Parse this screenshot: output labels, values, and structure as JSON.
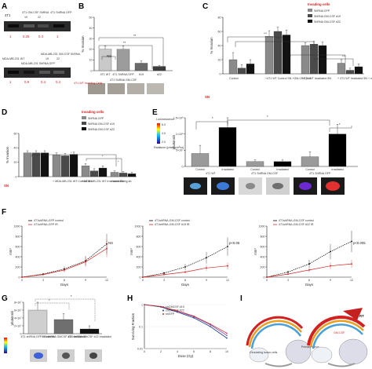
{
  "panels": [
    "A",
    "B",
    "C",
    "D",
    "E",
    "F",
    "G",
    "H",
    "I"
  ],
  "panel_a": {
    "top": {
      "cells": [
        "4T1",
        "4T1 GM-CSF ShRNA",
        "4T1 ShRNA GFP"
      ],
      "sub": [
        "19",
        "22"
      ],
      "values": [
        "1",
        "0.25",
        "0.4",
        "1"
      ]
    },
    "bottom": {
      "cells": [
        "MDA-MB-231 WT",
        "MDA-MB-231 ShRNA GFP",
        "MDA-MB-231 GM-CSF ShRNA"
      ],
      "sub": [
        "19",
        "22"
      ],
      "values": [
        "1",
        "0.9",
        "0.4",
        "0.4"
      ]
    }
  },
  "panel_b": {
    "chart_data": {
      "type": "bar",
      "categories": [
        "4T1 WT",
        "4T1 ShRNA GFP",
        "#19",
        "#22"
      ],
      "values": [
        20,
        20,
        7,
        4
      ],
      "errors": [
        3,
        3,
        2,
        1
      ],
      "ylabel": "% Invasion",
      "ylim": [
        0,
        50
      ],
      "yticks": [
        0,
        10,
        20,
        30,
        40,
        50
      ]
    },
    "group_label": "4T1 ShRNA GM-CSF",
    "sig": [
      "NS",
      "**",
      "**"
    ],
    "caption": "4T1 WT Invading Cells",
    "colors": [
      "#c9c9c9",
      "#9c9c9c",
      "#6a6a6a",
      "#3c3c3c"
    ]
  },
  "panel_c": {
    "legend_title": "Invading cells",
    "chart_data": {
      "type": "bar",
      "ylabel": "% Invasion",
      "ylim": [
        0,
        80
      ],
      "yticks": [
        0,
        20,
        40,
        60,
        80
      ],
      "categories": [
        "Control",
        "+4T1 WT Control SN +GM-CSF prot",
        "+ 4T1 WT Irradiated SN",
        "+ 4T1 WT Irradiated SN + neutralizing ab"
      ],
      "series": [
        {
          "name": "ShRNA GFP",
          "values": [
            20,
            53,
            40,
            15
          ],
          "errors": [
            10,
            8,
            4,
            5
          ],
          "color": "#8a8a8a"
        },
        {
          "name": "ShRNA GM-CSF #19",
          "values": [
            8,
            60,
            42,
            5
          ],
          "errors": [
            5,
            6,
            4,
            3
          ],
          "color": "#4a4a4a"
        },
        {
          "name": "ShRNA GM-CSF #22",
          "values": [
            14,
            55,
            40,
            10
          ],
          "errors": [
            6,
            7,
            5,
            4
          ],
          "color": "#111111"
        }
      ]
    },
    "sn_label": "SN",
    "sig": "***"
  },
  "panel_d": {
    "legend_title": "Invading cells",
    "chart_data": {
      "type": "bar",
      "ylabel": "% Invasion",
      "ylim": [
        0,
        60
      ],
      "yticks": [
        0,
        20,
        40,
        60
      ],
      "categories": [
        "",
        "+ MDA-MB-231 WT Control SN",
        "+ MDA-MB-231 WT Irradiated SN",
        "+ neutralizing ab"
      ],
      "series": [
        {
          "name": "ShRNA GFP",
          "values": [
            33,
            30,
            15,
            6
          ],
          "errors": [
            3,
            3,
            3,
            2
          ],
          "color": "#8a8a8a"
        },
        {
          "name": "ShRNA GM-CSF #19",
          "values": [
            33,
            29,
            8,
            5
          ],
          "errors": [
            3,
            3,
            3,
            2
          ],
          "color": "#4a4a4a"
        },
        {
          "name": "ShRNA GM-CSF #22",
          "values": [
            33,
            31,
            12,
            4
          ],
          "errors": [
            3,
            3,
            3,
            2
          ],
          "color": "#111111"
        }
      ]
    },
    "sn_label": "SN",
    "sig": "*"
  },
  "panel_e": {
    "legend_title": "Luminescence",
    "legend_sub": "Radiance (p/sec/cm²/sr)",
    "colorbar_ticks": [
      "6.0",
      "4.0",
      "2.0"
    ],
    "chart_data": {
      "type": "bar",
      "ylabel": "photons/s",
      "ylim": [
        0,
        15
      ],
      "yticks": [
        "0",
        "5×10⁷",
        "1×10⁸",
        "1.5×10⁸"
      ],
      "categories": [
        "Control",
        "Irradiated",
        "Control",
        "Irradiated",
        "Control",
        "Irradiated"
      ],
      "values": [
        4,
        12,
        1.5,
        1.5,
        3,
        10
      ],
      "errors": [
        2.5,
        3,
        0.5,
        0.5,
        1.5,
        3
      ],
      "colors": [
        "#9a9a9a",
        "#000000",
        "#9a9a9a",
        "#000000",
        "#9a9a9a",
        "#000000"
      ]
    },
    "group_labels": [
      "4T1 WT",
      "4T1 ShRNA GM-CSF",
      "4T1 ShRNA GFP"
    ],
    "sig": "*"
  },
  "panel_f": {
    "charts": [
      {
        "legend": [
          "4T1shRNA-GFP control",
          "4T1shRNA-GFP IR"
        ],
        "ylabel": "mm³",
        "xlabel": "Days",
        "sig": "NS",
        "chart_data": {
          "type": "line",
          "x": [
            0,
            3,
            6,
            9,
            12
          ],
          "ylim": [
            0,
            1000
          ],
          "yticks": [
            0,
            200,
            400,
            600,
            800,
            1000
          ],
          "series": [
            {
              "name": "4T1shRNA-GFP control",
              "values": [
                0,
                60,
                160,
                320,
                650
              ]
            },
            {
              "name": "4T1shRNA-GFP IR",
              "values": [
                0,
                50,
                140,
                300,
                560
              ]
            }
          ]
        }
      },
      {
        "legend": [
          "4T1shRNA-GM-CSF control",
          "4T1shRNA-GM-CSF #19 IR"
        ],
        "ylabel": "mm³",
        "xlabel": "Days",
        "sig": "p<0.05",
        "chart_data": {
          "type": "line",
          "x": [
            0,
            3,
            6,
            9,
            12
          ],
          "ylim": [
            0,
            1000
          ],
          "yticks": [
            0,
            200,
            400,
            600,
            800,
            1000
          ],
          "series": [
            {
              "name": "4T1shRNA-GM-CSF control",
              "values": [
                0,
                80,
                200,
                380,
                600
              ]
            },
            {
              "name": "4T1shRNA-GM-CSF #19 IR",
              "values": [
                0,
                50,
                100,
                180,
                220
              ]
            }
          ]
        }
      },
      {
        "legend": [
          "4T1shRNA-GM-CSF control",
          "4T1shRNA-GM-CSF #22 IR"
        ],
        "ylabel": "mm³",
        "xlabel": "Days",
        "sig": "p<0.005",
        "chart_data": {
          "type": "line",
          "x": [
            0,
            3,
            6,
            9,
            12
          ],
          "ylim": [
            0,
            1000
          ],
          "yticks": [
            0,
            200,
            400,
            600,
            800,
            1000
          ],
          "series": [
            {
              "name": "4T1shRNA-GM-CSF control",
              "values": [
                0,
                100,
                260,
                500,
                700
              ]
            },
            {
              "name": "4T1shRNA-GM-CSF #22 IR",
              "values": [
                0,
                60,
                140,
                220,
                260
              ]
            }
          ]
        }
      }
    ],
    "colors": [
      "#000000",
      "#d32020"
    ]
  },
  "panel_g": {
    "chart_data": {
      "type": "bar",
      "categories": [
        "4T1 shRNA GFP Irradiated",
        "4T1 shRNA GMCSF #19 Irradiated",
        "4T1 shRNA GMCSF #22 Irradiated"
      ],
      "values": [
        6,
        3.6,
        1.2
      ],
      "errors": [
        2,
        1.5,
        0.8
      ],
      "ylabel": "photons/s",
      "ylim": [
        0,
        8
      ],
      "yticks": [
        "0",
        "2×10⁷",
        "4×10⁷",
        "6×10⁷",
        "8×10⁷"
      ]
    },
    "colors": [
      "#cfcfcf",
      "#6f6f6f",
      "#111111"
    ],
    "sig": "*"
  },
  "panel_h": {
    "chart_data": {
      "type": "line",
      "xlabel": "Dose (Gy)",
      "ylabel": "Surviving Fraction",
      "x": [
        0,
        2,
        4,
        6,
        8,
        10
      ],
      "xlim": [
        0,
        10
      ],
      "ylim": [
        0.01,
        1
      ],
      "yticks": [
        "0.01",
        "0.1",
        "1"
      ],
      "xticks": [
        0,
        2,
        4,
        6,
        8,
        10
      ],
      "series": [
        {
          "name": "shGMCSF #19",
          "values": [
            1,
            0.8,
            0.5,
            0.28,
            0.12,
            0.04
          ],
          "color": "#7b5cc7"
        },
        {
          "name": "shGMCSF #22",
          "values": [
            1,
            0.78,
            0.46,
            0.25,
            0.1,
            0.03
          ],
          "color": "#1f3f8a"
        },
        {
          "name": "shGFP",
          "values": [
            1,
            0.82,
            0.52,
            0.3,
            0.13,
            0.05
          ],
          "color": "#d32020"
        }
      ]
    }
  },
  "panel_i": {
    "label_left": "Circulating tumor cells",
    "label_right": "Primary tumor",
    "label_rt": "RT",
    "label_gm": "GM-CSF"
  }
}
